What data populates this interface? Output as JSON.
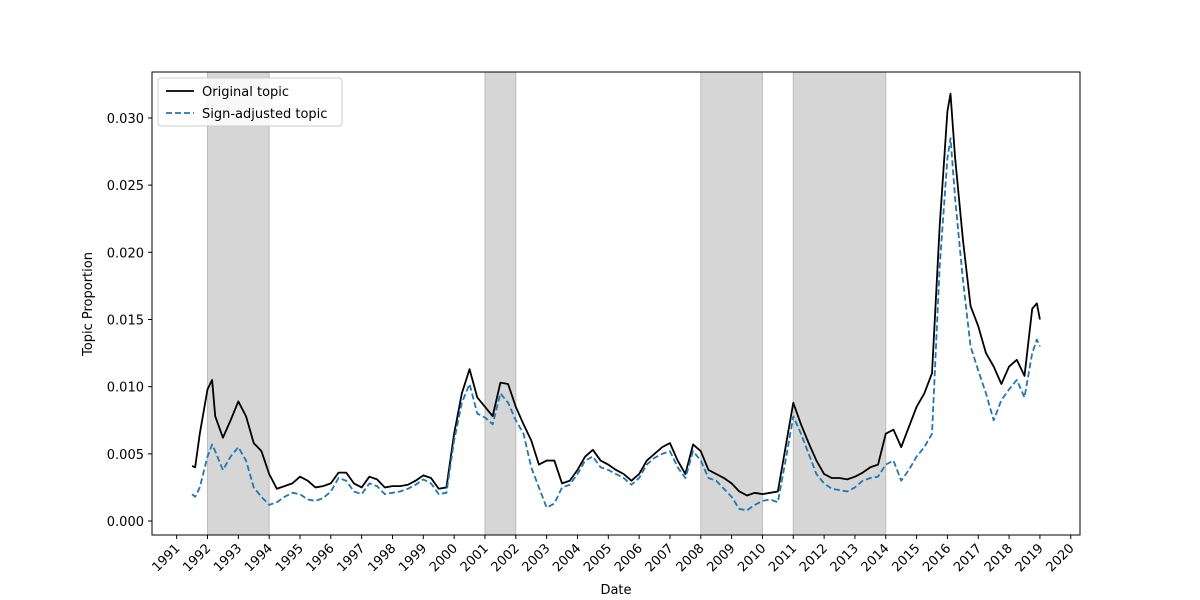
{
  "chart_data": {
    "type": "line",
    "x_label": "Date",
    "y_label": "Topic Proportion",
    "x": [
      1991.5,
      1991.6,
      1991.75,
      1992.0,
      1992.15,
      1992.25,
      1992.5,
      1992.75,
      1993.0,
      1993.25,
      1993.5,
      1993.75,
      1994.0,
      1994.25,
      1994.5,
      1994.75,
      1995.0,
      1995.25,
      1995.5,
      1995.75,
      1996.0,
      1996.25,
      1996.5,
      1996.75,
      1997.0,
      1997.25,
      1997.5,
      1997.75,
      1998.0,
      1998.25,
      1998.5,
      1998.75,
      1999.0,
      1999.25,
      1999.5,
      1999.75,
      2000.0,
      2000.25,
      2000.5,
      2000.75,
      2001.0,
      2001.25,
      2001.5,
      2001.75,
      2002.0,
      2002.25,
      2002.5,
      2002.75,
      2003.0,
      2003.25,
      2003.5,
      2003.75,
      2004.0,
      2004.25,
      2004.5,
      2004.75,
      2005.0,
      2005.25,
      2005.5,
      2005.75,
      2006.0,
      2006.25,
      2006.5,
      2006.75,
      2007.0,
      2007.25,
      2007.5,
      2007.75,
      2008.0,
      2008.25,
      2008.5,
      2008.75,
      2009.0,
      2009.25,
      2009.5,
      2009.75,
      2010.0,
      2010.25,
      2010.5,
      2010.75,
      2011.0,
      2011.25,
      2011.5,
      2011.75,
      2012.0,
      2012.25,
      2012.5,
      2012.75,
      2013.0,
      2013.25,
      2013.5,
      2013.75,
      2014.0,
      2014.25,
      2014.5,
      2014.75,
      2015.0,
      2015.25,
      2015.5,
      2015.75,
      2016.0,
      2016.1,
      2016.25,
      2016.5,
      2016.75,
      2017.0,
      2017.25,
      2017.5,
      2017.75,
      2018.0,
      2018.25,
      2018.5,
      2018.75,
      2018.9,
      2019.0
    ],
    "series": [
      {
        "name": "Original topic",
        "color": "#000000",
        "dash": false,
        "values": [
          0.0041,
          0.004,
          0.0065,
          0.0098,
          0.0105,
          0.0078,
          0.0062,
          0.0075,
          0.0089,
          0.0078,
          0.0058,
          0.0052,
          0.0035,
          0.0024,
          0.0026,
          0.0028,
          0.0033,
          0.003,
          0.0025,
          0.0026,
          0.0028,
          0.0036,
          0.0036,
          0.0028,
          0.0025,
          0.0033,
          0.0031,
          0.0025,
          0.0026,
          0.0026,
          0.0027,
          0.003,
          0.0034,
          0.0032,
          0.0024,
          0.0025,
          0.0065,
          0.0095,
          0.0113,
          0.0092,
          0.0085,
          0.0078,
          0.0103,
          0.0102,
          0.0085,
          0.0072,
          0.006,
          0.0042,
          0.0045,
          0.0045,
          0.0028,
          0.003,
          0.0038,
          0.0048,
          0.0053,
          0.0045,
          0.0042,
          0.0038,
          0.0035,
          0.003,
          0.0035,
          0.0045,
          0.005,
          0.0055,
          0.0058,
          0.0045,
          0.0035,
          0.0057,
          0.0052,
          0.0038,
          0.0035,
          0.0032,
          0.0028,
          0.0022,
          0.0019,
          0.0021,
          0.002,
          0.0021,
          0.0022,
          0.0055,
          0.0088,
          0.0072,
          0.0058,
          0.0045,
          0.0035,
          0.0032,
          0.0032,
          0.0031,
          0.0033,
          0.0036,
          0.004,
          0.0042,
          0.0065,
          0.0068,
          0.0055,
          0.007,
          0.0085,
          0.0095,
          0.011,
          0.022,
          0.0305,
          0.0318,
          0.027,
          0.021,
          0.016,
          0.0145,
          0.0125,
          0.0115,
          0.0102,
          0.0115,
          0.012,
          0.0108,
          0.0158,
          0.0162,
          0.015
        ]
      },
      {
        "name": "Sign-adjusted topic",
        "color": "#1f77b4",
        "dash": true,
        "values": [
          0.002,
          0.0018,
          0.0025,
          0.0048,
          0.0057,
          0.0052,
          0.0038,
          0.0048,
          0.0055,
          0.0045,
          0.0025,
          0.0018,
          0.0012,
          0.0014,
          0.0018,
          0.0021,
          0.002,
          0.0016,
          0.0015,
          0.0017,
          0.0022,
          0.0032,
          0.003,
          0.0022,
          0.002,
          0.0028,
          0.0026,
          0.002,
          0.0021,
          0.0022,
          0.0024,
          0.0027,
          0.0031,
          0.0028,
          0.002,
          0.0021,
          0.006,
          0.0088,
          0.0102,
          0.008,
          0.0077,
          0.0072,
          0.0095,
          0.0088,
          0.0075,
          0.0065,
          0.004,
          0.0025,
          0.001,
          0.0013,
          0.0025,
          0.0027,
          0.0035,
          0.0045,
          0.0048,
          0.004,
          0.0038,
          0.0035,
          0.0032,
          0.0027,
          0.0032,
          0.0042,
          0.0047,
          0.005,
          0.0052,
          0.004,
          0.0032,
          0.0052,
          0.0045,
          0.0032,
          0.003,
          0.0024,
          0.0018,
          0.0009,
          0.0008,
          0.0012,
          0.0015,
          0.0016,
          0.0014,
          0.0045,
          0.0078,
          0.0065,
          0.005,
          0.0035,
          0.0028,
          0.0024,
          0.0023,
          0.0022,
          0.0025,
          0.003,
          0.0032,
          0.0033,
          0.0042,
          0.0045,
          0.003,
          0.0038,
          0.0048,
          0.0055,
          0.0065,
          0.019,
          0.027,
          0.0285,
          0.024,
          0.018,
          0.013,
          0.0112,
          0.0095,
          0.0075,
          0.009,
          0.0098,
          0.0105,
          0.0092,
          0.0125,
          0.0135,
          0.013
        ]
      }
    ],
    "shaded_regions": [
      [
        1992,
        1994
      ],
      [
        2001,
        2002
      ],
      [
        2008,
        2010
      ],
      [
        2011,
        2014
      ]
    ],
    "shade_color": "#d6d6d6",
    "xlim": [
      1990.2,
      2020.3
    ],
    "xticks": [
      1991,
      1992,
      1993,
      1994,
      1995,
      1996,
      1997,
      1998,
      1999,
      2000,
      2001,
      2002,
      2003,
      2004,
      2005,
      2006,
      2007,
      2008,
      2009,
      2010,
      2011,
      2012,
      2013,
      2014,
      2015,
      2016,
      2017,
      2018,
      2019,
      2020
    ],
    "ylim": [
      -0.00104,
      0.03342
    ],
    "yticks": [
      {
        "value": 0,
        "label": "0.000"
      },
      {
        "value": 0.005,
        "label": "0.005"
      },
      {
        "value": 0.01,
        "label": "0.010"
      },
      {
        "value": 0.015,
        "label": "0.015"
      },
      {
        "value": 0.02,
        "label": "0.020"
      },
      {
        "value": 0.025,
        "label": "0.025"
      },
      {
        "value": 0.03,
        "label": "0.030"
      }
    ],
    "legend": "upper left",
    "grid": false
  }
}
